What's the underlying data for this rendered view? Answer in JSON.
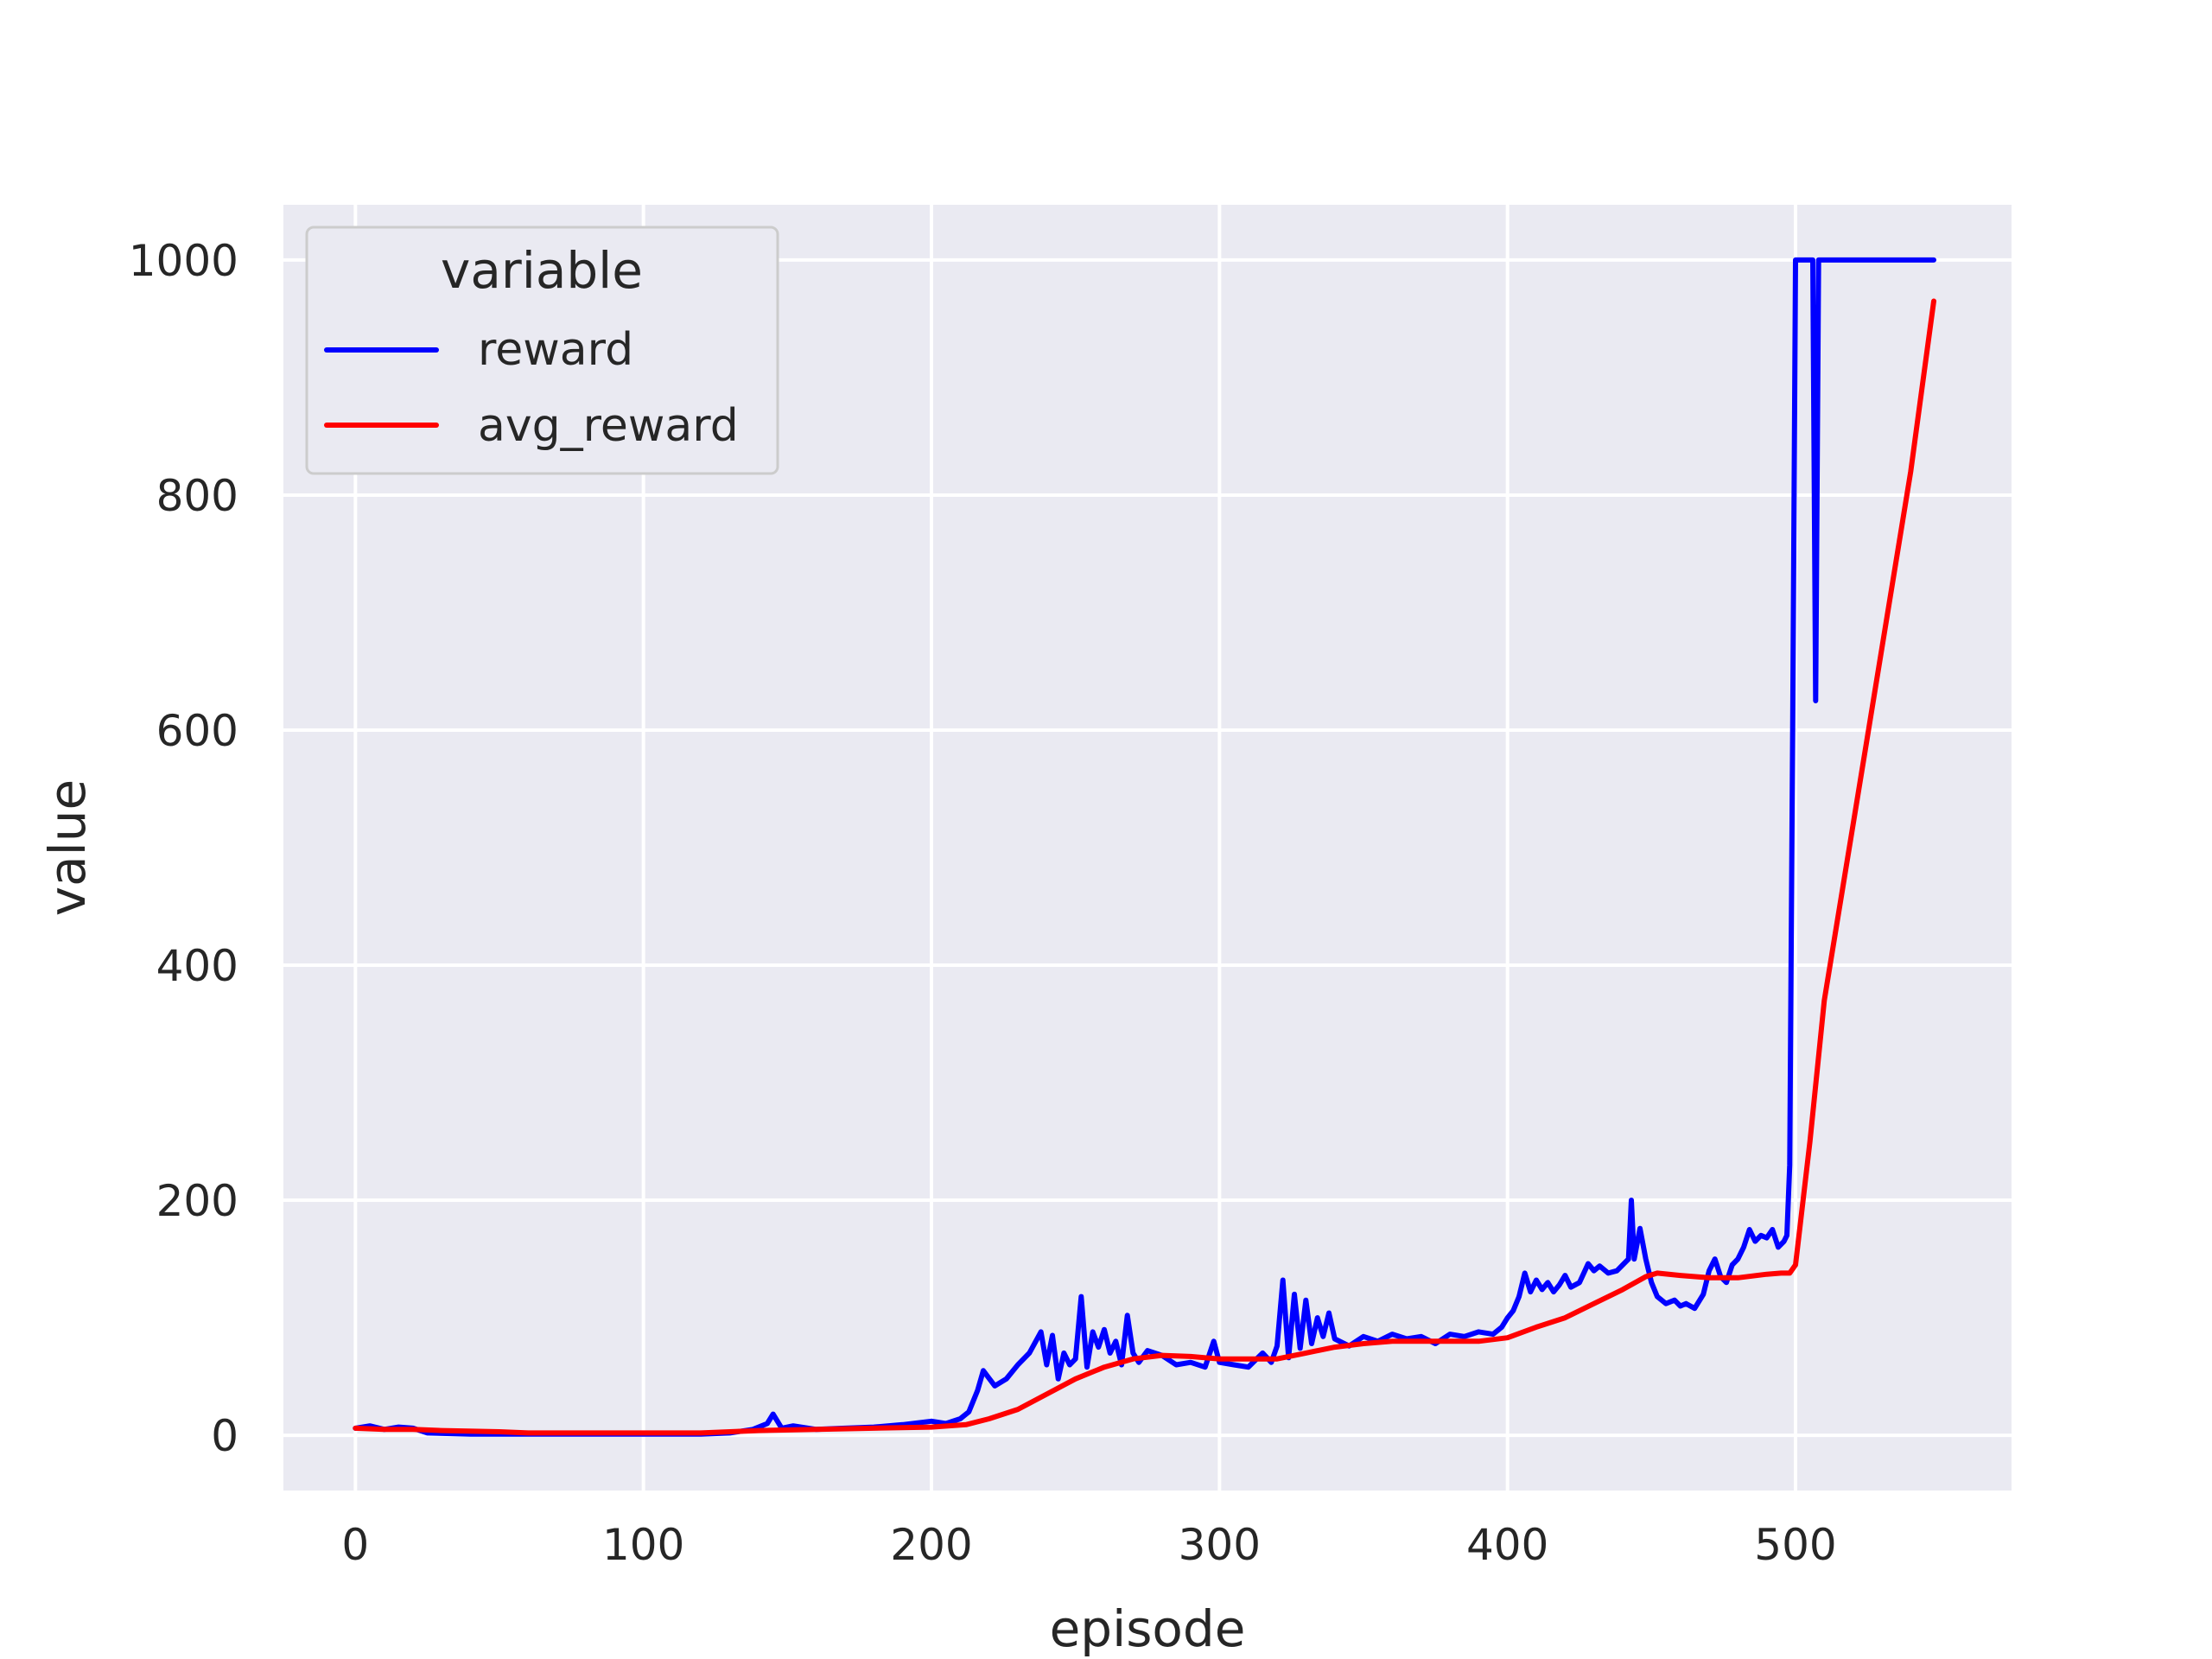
{
  "chart_data": {
    "type": "line",
    "title": "",
    "xlabel": "episode",
    "ylabel": "value",
    "xlim": [
      -25,
      575
    ],
    "ylim": [
      -47,
      1047
    ],
    "xticks": [
      0,
      100,
      200,
      300,
      400,
      500
    ],
    "yticks": [
      0,
      200,
      400,
      600,
      800,
      1000
    ],
    "grid": true,
    "legend": {
      "title": "variable",
      "position": "top-left"
    },
    "series": [
      {
        "name": "reward",
        "color": "#0000ff",
        "x": [
          0,
          5,
          10,
          15,
          20,
          25,
          40,
          60,
          80,
          100,
          120,
          130,
          138,
          143,
          145,
          148,
          152,
          160,
          170,
          180,
          190,
          200,
          205,
          210,
          213,
          216,
          218,
          222,
          226,
          230,
          234,
          238,
          240,
          242,
          244,
          246,
          248,
          250,
          252,
          254,
          256,
          258,
          260,
          262,
          264,
          266,
          268,
          270,
          272,
          275,
          280,
          285,
          290,
          295,
          298,
          300,
          305,
          310,
          315,
          318,
          320,
          322,
          324,
          326,
          328,
          330,
          332,
          334,
          336,
          338,
          340,
          345,
          350,
          355,
          360,
          365,
          370,
          375,
          380,
          385,
          390,
          395,
          398,
          400,
          402,
          404,
          406,
          408,
          410,
          412,
          414,
          416,
          418,
          420,
          422,
          425,
          428,
          430,
          432,
          435,
          438,
          440,
          442,
          443,
          444,
          446,
          448,
          450,
          452,
          455,
          458,
          460,
          462,
          465,
          468,
          470,
          472,
          474,
          476,
          478,
          480,
          482,
          484,
          486,
          488,
          490,
          492,
          494,
          496,
          497,
          498,
          499,
          500,
          501,
          503,
          505,
          506,
          507,
          508,
          509,
          510,
          520,
          530,
          540,
          548
        ],
        "y": [
          6,
          8,
          5,
          7,
          6,
          2,
          1,
          1,
          1,
          1,
          1,
          2,
          5,
          10,
          18,
          6,
          8,
          5,
          6,
          7,
          9,
          12,
          10,
          14,
          20,
          38,
          55,
          42,
          48,
          60,
          70,
          88,
          60,
          85,
          48,
          70,
          60,
          65,
          118,
          58,
          88,
          75,
          90,
          70,
          80,
          60,
          102,
          70,
          62,
          72,
          68,
          60,
          62,
          58,
          80,
          62,
          60,
          58,
          70,
          62,
          76,
          132,
          66,
          120,
          74,
          115,
          78,
          100,
          84,
          104,
          82,
          76,
          84,
          80,
          86,
          82,
          84,
          78,
          86,
          84,
          88,
          86,
          92,
          100,
          106,
          118,
          138,
          122,
          132,
          124,
          130,
          122,
          128,
          136,
          126,
          130,
          146,
          140,
          144,
          138,
          140,
          145,
          150,
          200,
          150,
          176,
          150,
          130,
          118,
          112,
          115,
          110,
          112,
          108,
          120,
          140,
          150,
          135,
          130,
          145,
          150,
          160,
          175,
          165,
          170,
          168,
          175,
          160,
          165,
          170,
          230,
          600,
          1000,
          1000,
          1000,
          1000,
          1000,
          625,
          1000,
          1000,
          1000,
          1000,
          1000,
          1000,
          1000
        ]
      },
      {
        "name": "avg_reward",
        "color": "#ff0000",
        "x": [
          0,
          10,
          20,
          30,
          50,
          60,
          80,
          100,
          120,
          140,
          160,
          180,
          200,
          212,
          220,
          230,
          240,
          250,
          260,
          270,
          280,
          290,
          300,
          310,
          320,
          330,
          340,
          350,
          360,
          370,
          380,
          390,
          400,
          410,
          420,
          430,
          440,
          448,
          452,
          460,
          470,
          480,
          490,
          495,
          498,
          500,
          505,
          510,
          520,
          530,
          540,
          548
        ],
        "y": [
          6,
          5,
          5,
          4,
          3,
          2,
          2,
          2,
          2,
          4,
          5,
          6,
          7,
          9,
          14,
          22,
          35,
          48,
          58,
          65,
          68,
          67,
          65,
          65,
          65,
          70,
          75,
          78,
          80,
          80,
          80,
          80,
          83,
          92,
          100,
          112,
          124,
          135,
          138,
          136,
          134,
          134,
          137,
          138,
          138,
          145,
          250,
          370,
          520,
          670,
          820,
          965
        ]
      }
    ]
  }
}
